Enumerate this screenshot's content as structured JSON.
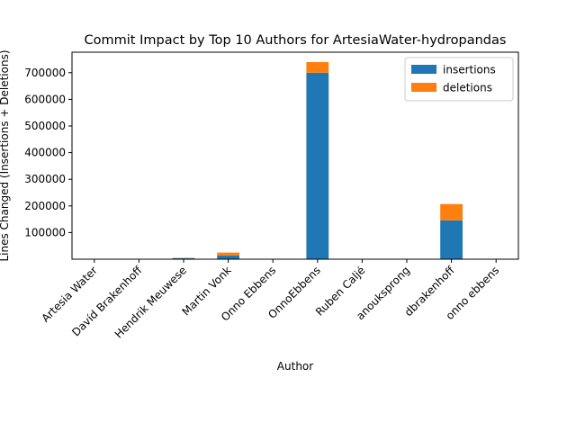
{
  "chart_data": {
    "type": "bar",
    "stacked": true,
    "title": "Commit Impact by Top 10 Authors for ArtesiaWater-hydropandas",
    "xlabel": "Author",
    "ylabel": "Lines Changed (Insertions + Deletions)",
    "categories": [
      "Artesia Water",
      "Davíd Brakenhoff",
      "Hendrik Meuwese",
      "Martin Vonk",
      "Onno Ebbens",
      "OnnoEbbens",
      "Ruben Caljé",
      "anouksprong",
      "dbrakenhoff",
      "onno ebbens"
    ],
    "series": [
      {
        "name": "insertions",
        "color": "#1f77b4",
        "values": [
          200,
          300,
          3500,
          14000,
          150,
          700000,
          300,
          150,
          146000,
          100
        ]
      },
      {
        "name": "deletions",
        "color": "#ff7f0e",
        "values": [
          100,
          200,
          1500,
          11000,
          100,
          40000,
          200,
          100,
          61000,
          50
        ]
      }
    ],
    "yticks": [
      100000,
      200000,
      300000,
      400000,
      500000,
      600000,
      700000
    ],
    "ylim": [
      0,
      777000
    ],
    "legend_position": "top-right",
    "grid": false
  }
}
